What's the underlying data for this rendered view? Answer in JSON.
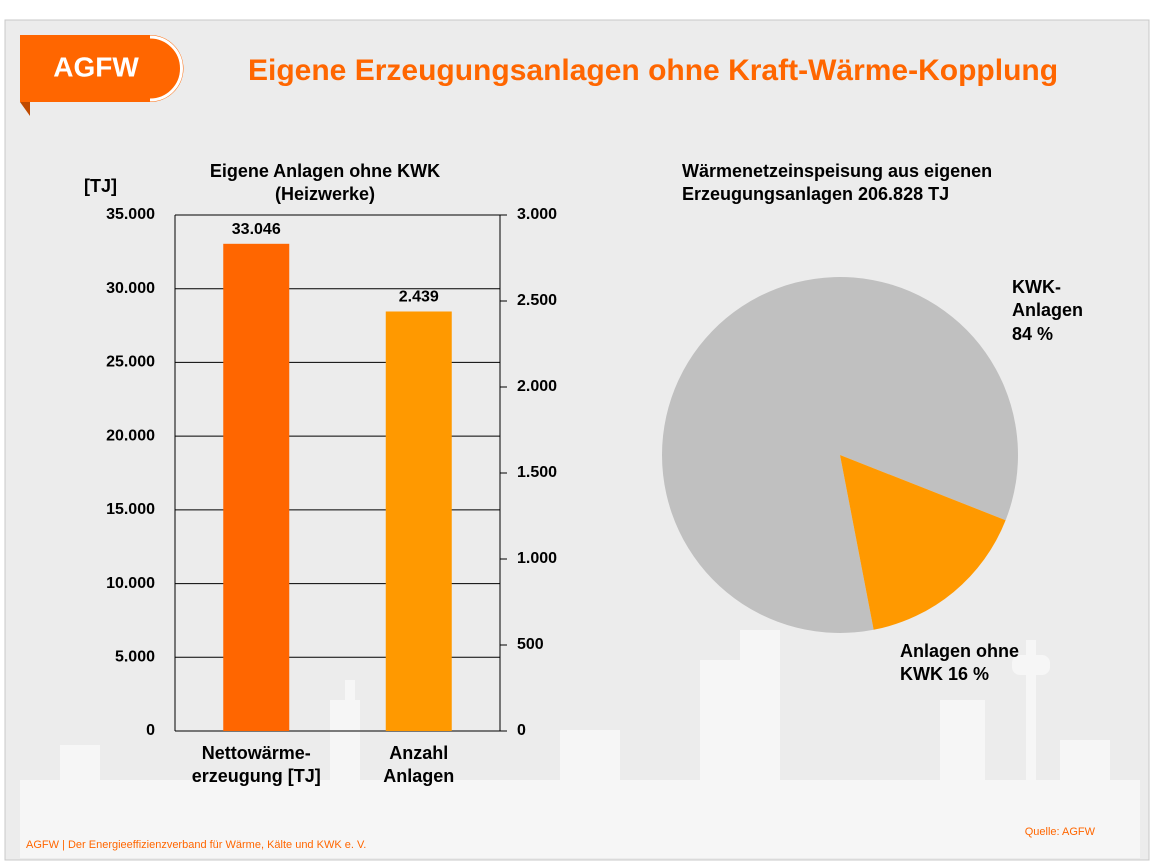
{
  "header": {
    "logo": "AGFW",
    "title": "Eigene Erzeugungsanlagen ohne Kraft-Wärme-Kopplung"
  },
  "footer": {
    "text": "AGFW | Der Energieeffizienzverband  für Wärme, Kälte und KWK e. V.",
    "source": "Quelle: AGFW"
  },
  "chart_data": [
    {
      "type": "bar",
      "title": "Eigene Anlagen ohne KWK\n(Heizwerke)",
      "y_label": "[TJ]",
      "categories": [
        "Nettowärme-\nerzeugung [TJ]",
        "Anzahl\nAnlagen"
      ],
      "series": [
        {
          "color": "#ff6600",
          "values": [
            33046,
            null
          ],
          "value_labels": [
            "33.046",
            null
          ]
        },
        {
          "color": "#ff9900",
          "axis": "y2",
          "values": [
            null,
            2439
          ],
          "value_labels": [
            null,
            "2.439"
          ]
        }
      ],
      "ylim": [
        0,
        35000
      ],
      "yticks": [
        0,
        {
          "value": 5000,
          "label": "5.000"
        },
        {
          "value": 10000,
          "label": "10.000"
        },
        {
          "value": 15000,
          "label": "15.000"
        },
        {
          "value": 20000,
          "label": "20.000"
        },
        {
          "value": 25000,
          "label": "25.000"
        },
        {
          "value": 30000,
          "label": "30.000"
        },
        {
          "value": 35000,
          "label": "35.000"
        }
      ],
      "y2lim": [
        0,
        3000
      ],
      "y2ticks": [
        0,
        500,
        {
          "value": 1000,
          "label": "1.000"
        },
        {
          "value": 1500,
          "label": "1.500"
        },
        {
          "value": 2000,
          "label": "2.000"
        },
        {
          "value": 2500,
          "label": "2.500"
        },
        {
          "value": 3000,
          "label": "3.000"
        }
      ],
      "grid": true
    },
    {
      "type": "pie",
      "title": "Wärmenetzeinspeisung aus eigenen\nErzeugungsanlagen 206.828 TJ",
      "categories": [
        "KWK-\nAnlagen",
        "Anlagen ohne\nKWK"
      ],
      "values": [
        84,
        16
      ],
      "value_labels": [
        "84 %",
        "16 %"
      ],
      "colors": [
        "#c0c0c0",
        "#ff9900"
      ]
    }
  ]
}
